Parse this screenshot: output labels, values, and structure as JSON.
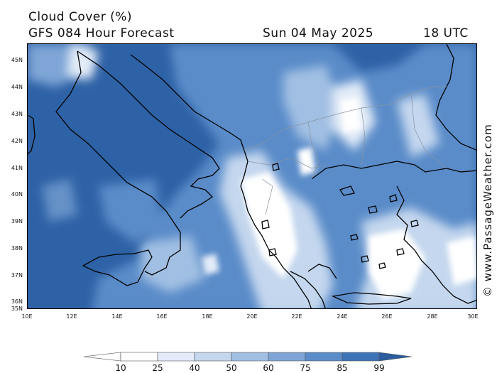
{
  "header": {
    "title": "Cloud Cover (%)",
    "subtitle": "GFS 084 Hour Forecast",
    "date": "Sun 04 May 2025",
    "time": "18 UTC"
  },
  "credit": "© www.PassageWeather.com",
  "lat_labels": [
    "45N",
    "44N",
    "43N",
    "42N",
    "41N",
    "40N",
    "39N",
    "38N",
    "37N",
    "36N",
    "35N"
  ],
  "lon_labels": [
    "10E",
    "12E",
    "14E",
    "16E",
    "18E",
    "20E",
    "22E",
    "24E",
    "26E",
    "28E",
    "30E"
  ],
  "legend": {
    "labels": [
      "10",
      "25",
      "40",
      "50",
      "60",
      "75",
      "85",
      "99"
    ],
    "colors": [
      "#ffffff",
      "#e3ecf8",
      "#c4d7ee",
      "#a1bfe3",
      "#7ea5d6",
      "#5a8cc9",
      "#3e74b7",
      "#2b5d9e"
    ]
  }
}
